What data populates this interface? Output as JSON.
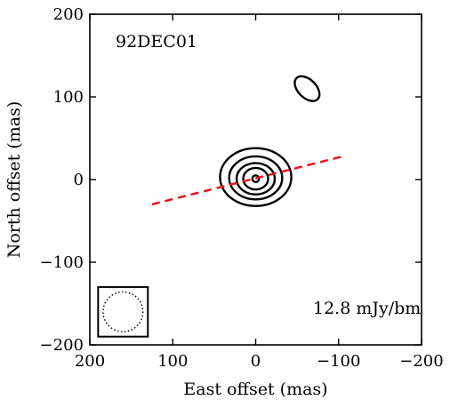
{
  "chart_data": {
    "type": "contour",
    "panel_label": "92DEC01",
    "flux_label": "12.8 mJy/bm",
    "xlabel": "East offset (mas)",
    "ylabel": "North offset (mas)",
    "xlim": [
      200,
      -200
    ],
    "ylim": [
      -200,
      200
    ],
    "xticks": [
      200,
      100,
      0,
      -100,
      -200
    ],
    "yticks": [
      -200,
      -100,
      0,
      100,
      200
    ],
    "xtick_labels": [
      "200",
      "100",
      "0",
      "−100",
      "−200"
    ],
    "ytick_labels": [
      "−200",
      "−100",
      "0",
      "100",
      "200"
    ],
    "main_contours": [
      {
        "cx": 0,
        "cy": 3,
        "rx": 43,
        "ry": 35
      },
      {
        "cx": 0,
        "cy": 2,
        "rx": 32,
        "ry": 26
      },
      {
        "cx": 0,
        "cy": 1,
        "rx": 23,
        "ry": 19
      },
      {
        "cx": 0,
        "cy": 1,
        "rx": 15,
        "ry": 13
      },
      {
        "cx": 0,
        "cy": 1,
        "rx": 4,
        "ry": 4
      }
    ],
    "secondary_component": {
      "cx": -62,
      "cy": 110,
      "rx": 18,
      "ry": 11,
      "angle_deg": 45
    },
    "jet_axis": {
      "x": [
        125,
        -105
      ],
      "y": [
        -30,
        28
      ],
      "color": "#e8141b",
      "style": "dashed"
    },
    "beam": {
      "box_x": [
        190,
        130
      ],
      "box_y": [
        -190,
        -130
      ],
      "diameter_mas": 48
    }
  }
}
